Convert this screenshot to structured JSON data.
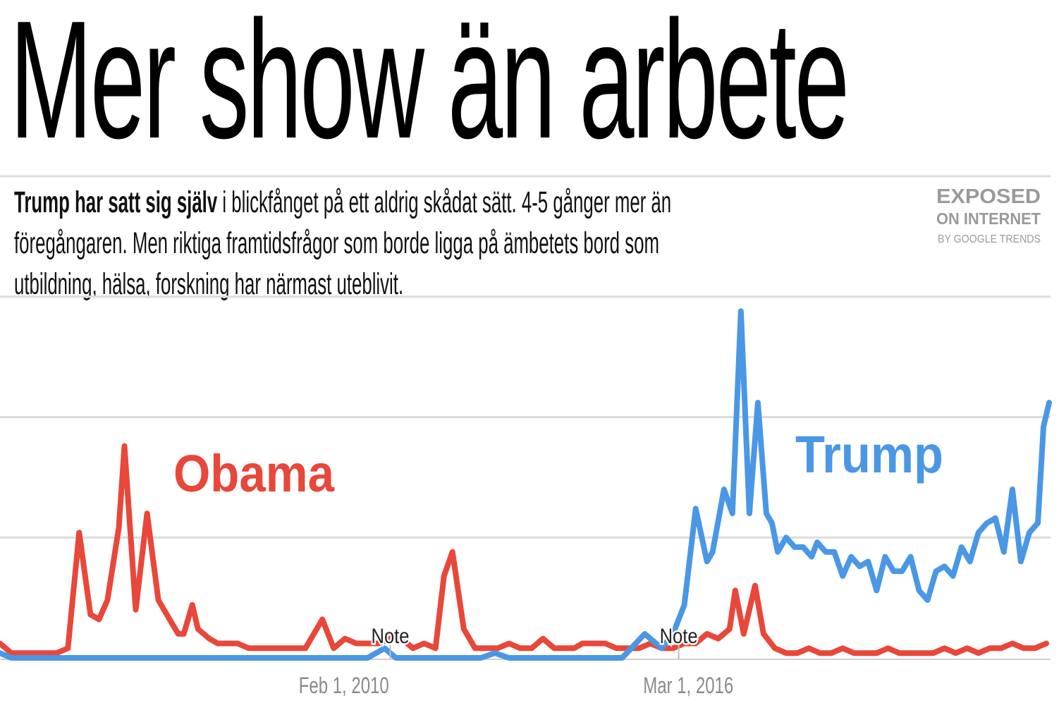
{
  "headline": "Mer show än arbete",
  "intro": {
    "bold": "Trump har satt sig själv",
    "rest": " i blickfånget på ett aldrig skådat sätt. 4-5 gånger mer än föregångaren. Men riktiga framtidsfrågor som borde ligga på ämbetets bord som utbildning, hälsa, forskning har närmast uteblivit."
  },
  "stamp": {
    "line1": "EXPOSED",
    "line2": "ON INTERNET",
    "line3": "BY GOOGLE TRENDS"
  },
  "colors": {
    "obama": "#e8473a",
    "trump": "#4a97e6",
    "grid": "#dcdcdc",
    "tick": "#8a8a8a"
  },
  "chart_data": {
    "type": "line",
    "title": "",
    "xlabel": "",
    "ylabel": "",
    "ylim": [
      0,
      100
    ],
    "grid": true,
    "x_ticks": [
      {
        "label": "Feb 1, 2010",
        "x": 2010.08
      },
      {
        "label": "Mar 1, 2016",
        "x": 2016.17
      }
    ],
    "annotations": [
      {
        "text": "Note",
        "x": 2010.9
      },
      {
        "text": "Note",
        "x": 2016.0
      }
    ],
    "series": [
      {
        "name": "Obama",
        "color": "#e8473a",
        "x": [
          2004.0,
          2004.1,
          2004.2,
          2004.4,
          2004.6,
          2004.8,
          2005.0,
          2005.2,
          2005.4,
          2005.6,
          2005.75,
          2005.9,
          2006.1,
          2006.2,
          2006.4,
          2006.6,
          2006.8,
          2007.0,
          2007.15,
          2007.25,
          2007.4,
          2007.5,
          2007.7,
          2007.85,
          2008.0,
          2008.2,
          2008.4,
          2008.6,
          2008.8,
          2009.0,
          2009.2,
          2009.4,
          2009.5,
          2009.7,
          2009.9,
          2010.1,
          2010.3,
          2010.5,
          2010.7,
          2010.9,
          2011.1,
          2011.3,
          2011.5,
          2011.7,
          2011.85,
          2012.0,
          2012.2,
          2012.4,
          2012.6,
          2012.8,
          2013.0,
          2013.2,
          2013.4,
          2013.6,
          2013.8,
          2014.0,
          2014.15,
          2014.3,
          2014.5,
          2014.7,
          2014.9,
          2015.1,
          2015.3,
          2015.5,
          2015.7,
          2015.9,
          2016.1,
          2016.3,
          2016.5,
          2016.7,
          2016.9,
          2017.0,
          2017.15,
          2017.35,
          2017.5,
          2017.7,
          2017.9,
          2018.1,
          2018.3,
          2018.5,
          2018.7,
          2018.9,
          2019.1,
          2019.3,
          2019.5,
          2019.7,
          2019.9,
          2020.1,
          2020.3,
          2020.5,
          2020.7,
          2020.9,
          2021.1,
          2021.3,
          2021.5,
          2021.7,
          2021.9,
          2022.1,
          2022.3,
          2022.5
        ],
        "values": [
          3,
          2,
          1,
          1,
          1,
          1,
          1,
          2,
          26,
          9,
          8,
          12,
          27,
          44,
          10,
          30,
          12,
          8,
          5,
          5,
          11,
          6,
          4,
          3,
          3,
          3,
          2,
          2,
          2,
          2,
          2,
          2,
          4,
          8,
          2,
          4,
          3,
          3,
          3,
          4,
          4,
          2,
          3,
          2,
          17,
          22,
          6,
          2,
          2,
          2,
          3,
          2,
          2,
          4,
          2,
          2,
          2,
          3,
          3,
          3,
          2,
          2,
          2,
          3,
          2,
          2,
          3,
          3,
          5,
          4,
          6,
          14,
          5,
          15,
          5,
          2,
          1,
          1,
          2,
          1,
          1,
          2,
          1,
          1,
          1,
          2,
          1,
          1,
          1,
          1,
          2,
          1,
          2,
          1,
          2,
          2,
          3,
          2,
          2,
          3
        ],
        "ticks": []
      },
      {
        "name": "Trump",
        "color": "#4a97e6",
        "x": [
          2004.0,
          2004.2,
          2006.0,
          2008.0,
          2010.0,
          2010.5,
          2010.8,
          2011.0,
          2011.3,
          2011.6,
          2012.0,
          2012.5,
          2012.75,
          2013.0,
          2014.0,
          2015.0,
          2015.4,
          2015.7,
          2015.9,
          2016.1,
          2016.3,
          2016.5,
          2016.6,
          2016.8,
          2016.95,
          2017.1,
          2017.25,
          2017.4,
          2017.55,
          2017.65,
          2017.75,
          2017.9,
          2018.05,
          2018.2,
          2018.35,
          2018.45,
          2018.6,
          2018.75,
          2018.9,
          2019.05,
          2019.2,
          2019.35,
          2019.5,
          2019.65,
          2019.8,
          2019.95,
          2020.1,
          2020.25,
          2020.4,
          2020.55,
          2020.7,
          2020.85,
          2021.0,
          2021.15,
          2021.3,
          2021.45,
          2021.6,
          2021.75,
          2021.9,
          2022.05,
          2022.2,
          2022.35,
          2022.45,
          2022.55
        ],
        "values": [
          1,
          0,
          0,
          0,
          0,
          0,
          2,
          0,
          0,
          0,
          0,
          0,
          1,
          0,
          0,
          0,
          5,
          2,
          5,
          11,
          31,
          20,
          22,
          35,
          30,
          72,
          30,
          53,
          30,
          28,
          22,
          25,
          23,
          23,
          21,
          24,
          22,
          22,
          17,
          21,
          19,
          20,
          14,
          21,
          18,
          18,
          21,
          14,
          12,
          18,
          19,
          17,
          23,
          20,
          26,
          28,
          29,
          22,
          35,
          20,
          26,
          28,
          48,
          53
        ],
        "ticks": []
      }
    ]
  }
}
